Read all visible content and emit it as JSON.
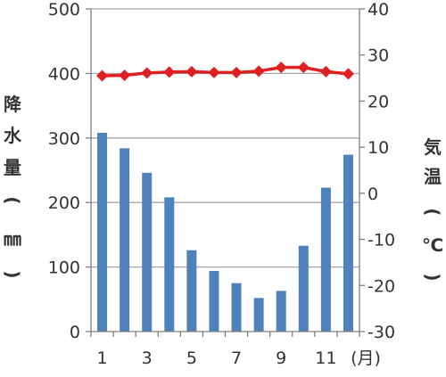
{
  "chart_data": {
    "type": "bar",
    "x": [
      1,
      2,
      3,
      4,
      5,
      6,
      7,
      8,
      9,
      10,
      11,
      12
    ],
    "x_tick_labels": [
      "1",
      "3",
      "5",
      "7",
      "9",
      "11"
    ],
    "x_unit": "(月)",
    "series": [
      {
        "kind": "bar",
        "axis": "left",
        "color": "#4f81bd",
        "values": [
          308,
          284,
          246,
          208,
          126,
          94,
          75,
          52,
          63,
          133,
          223,
          274
        ]
      },
      {
        "kind": "line",
        "axis": "right",
        "color": "#e02020",
        "marker": "diamond",
        "values": [
          25.5,
          25.6,
          26.1,
          26.3,
          26.4,
          26.2,
          26.2,
          26.5,
          27.3,
          27.3,
          26.4,
          25.9
        ]
      }
    ],
    "y_left": {
      "label": "降水量(㎜)",
      "label_chars": [
        "降",
        "水",
        "量",
        "(",
        "㎜",
        ")"
      ],
      "ylim": [
        0,
        500
      ],
      "ticks": [
        "0",
        "100",
        "200",
        "300",
        "400",
        "500"
      ]
    },
    "y_right": {
      "label": "気温(℃)",
      "label_chars": [
        "気",
        "温",
        "(",
        "℃",
        ")"
      ],
      "ylim": [
        -30,
        40
      ],
      "ticks": [
        "-30",
        "-20",
        "-10",
        "0",
        "10",
        "20",
        "30",
        "40"
      ]
    },
    "grid": true,
    "colors": {
      "gridline": "#a6a6a6",
      "axis": "#7f7f7f",
      "text": "#333333"
    }
  }
}
